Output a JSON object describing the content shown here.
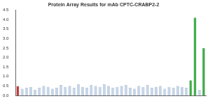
{
  "chart_data": {
    "type": "bar",
    "title": "Protein Array Results for mAb CPTC-CRABP2-2",
    "categories": [
      null,
      null,
      null,
      null,
      null,
      null,
      null,
      null,
      null,
      null,
      null,
      null,
      null,
      null,
      null,
      null,
      null,
      null,
      null,
      null,
      null,
      null,
      null,
      null,
      null,
      null,
      null,
      null,
      null,
      null,
      null,
      null,
      null,
      null,
      null,
      null,
      null,
      null,
      null,
      null,
      null,
      null,
      null,
      null
    ],
    "values": [
      0.5,
      0.35,
      0.4,
      0.45,
      0.3,
      0.4,
      0.5,
      0.45,
      0.35,
      0.4,
      0.55,
      0.45,
      0.5,
      0.4,
      0.6,
      0.45,
      0.4,
      0.55,
      0.5,
      0.45,
      0.6,
      0.5,
      0.4,
      0.45,
      0.5,
      0.55,
      0.4,
      0.35,
      0.5,
      0.45,
      0.55,
      0.4,
      0.45,
      0.5,
      0.35,
      0.45,
      0.4,
      0.5,
      0.45,
      0.4,
      0.8,
      4.1,
      0.3,
      2.5
    ],
    "colors": [
      "#cc3333",
      "#c5d5ea",
      "#c5d5ea",
      "#c5d5ea",
      "#c5d5ea",
      "#c5d5ea",
      "#c5d5ea",
      "#c5d5ea",
      "#c5d5ea",
      "#c5d5ea",
      "#c5d5ea",
      "#c5d5ea",
      "#c5d5ea",
      "#c5d5ea",
      "#c5d5ea",
      "#c5d5ea",
      "#c5d5ea",
      "#c5d5ea",
      "#c5d5ea",
      "#c5d5ea",
      "#c5d5ea",
      "#c5d5ea",
      "#c5d5ea",
      "#c5d5ea",
      "#c5d5ea",
      "#c5d5ea",
      "#c5d5ea",
      "#c5d5ea",
      "#c5d5ea",
      "#c5d5ea",
      "#c5d5ea",
      "#c5d5ea",
      "#c5d5ea",
      "#c5d5ea",
      "#c5d5ea",
      "#c5d5ea",
      "#c5d5ea",
      "#c5d5ea",
      "#c5d5ea",
      "#c5d5ea",
      "#3cb043",
      "#3cb043",
      "#c5d5ea",
      "#3cb043"
    ],
    "ylim": [
      0,
      4.5
    ],
    "yticks": [
      {
        "value": 0,
        "label": "0.0"
      },
      {
        "value": 0.5,
        "label": "0.5"
      },
      {
        "value": 1,
        "label": "1.0"
      },
      {
        "value": 1.5,
        "label": "1.5"
      },
      {
        "value": 2,
        "label": "2.0"
      },
      {
        "value": 2.5,
        "label": "2.5"
      },
      {
        "value": 3,
        "label": "3.0"
      },
      {
        "value": 3.5,
        "label": "3.5"
      },
      {
        "value": 4,
        "label": "4.0"
      },
      {
        "value": 4.5,
        "label": "4.5"
      }
    ],
    "grid": false
  }
}
